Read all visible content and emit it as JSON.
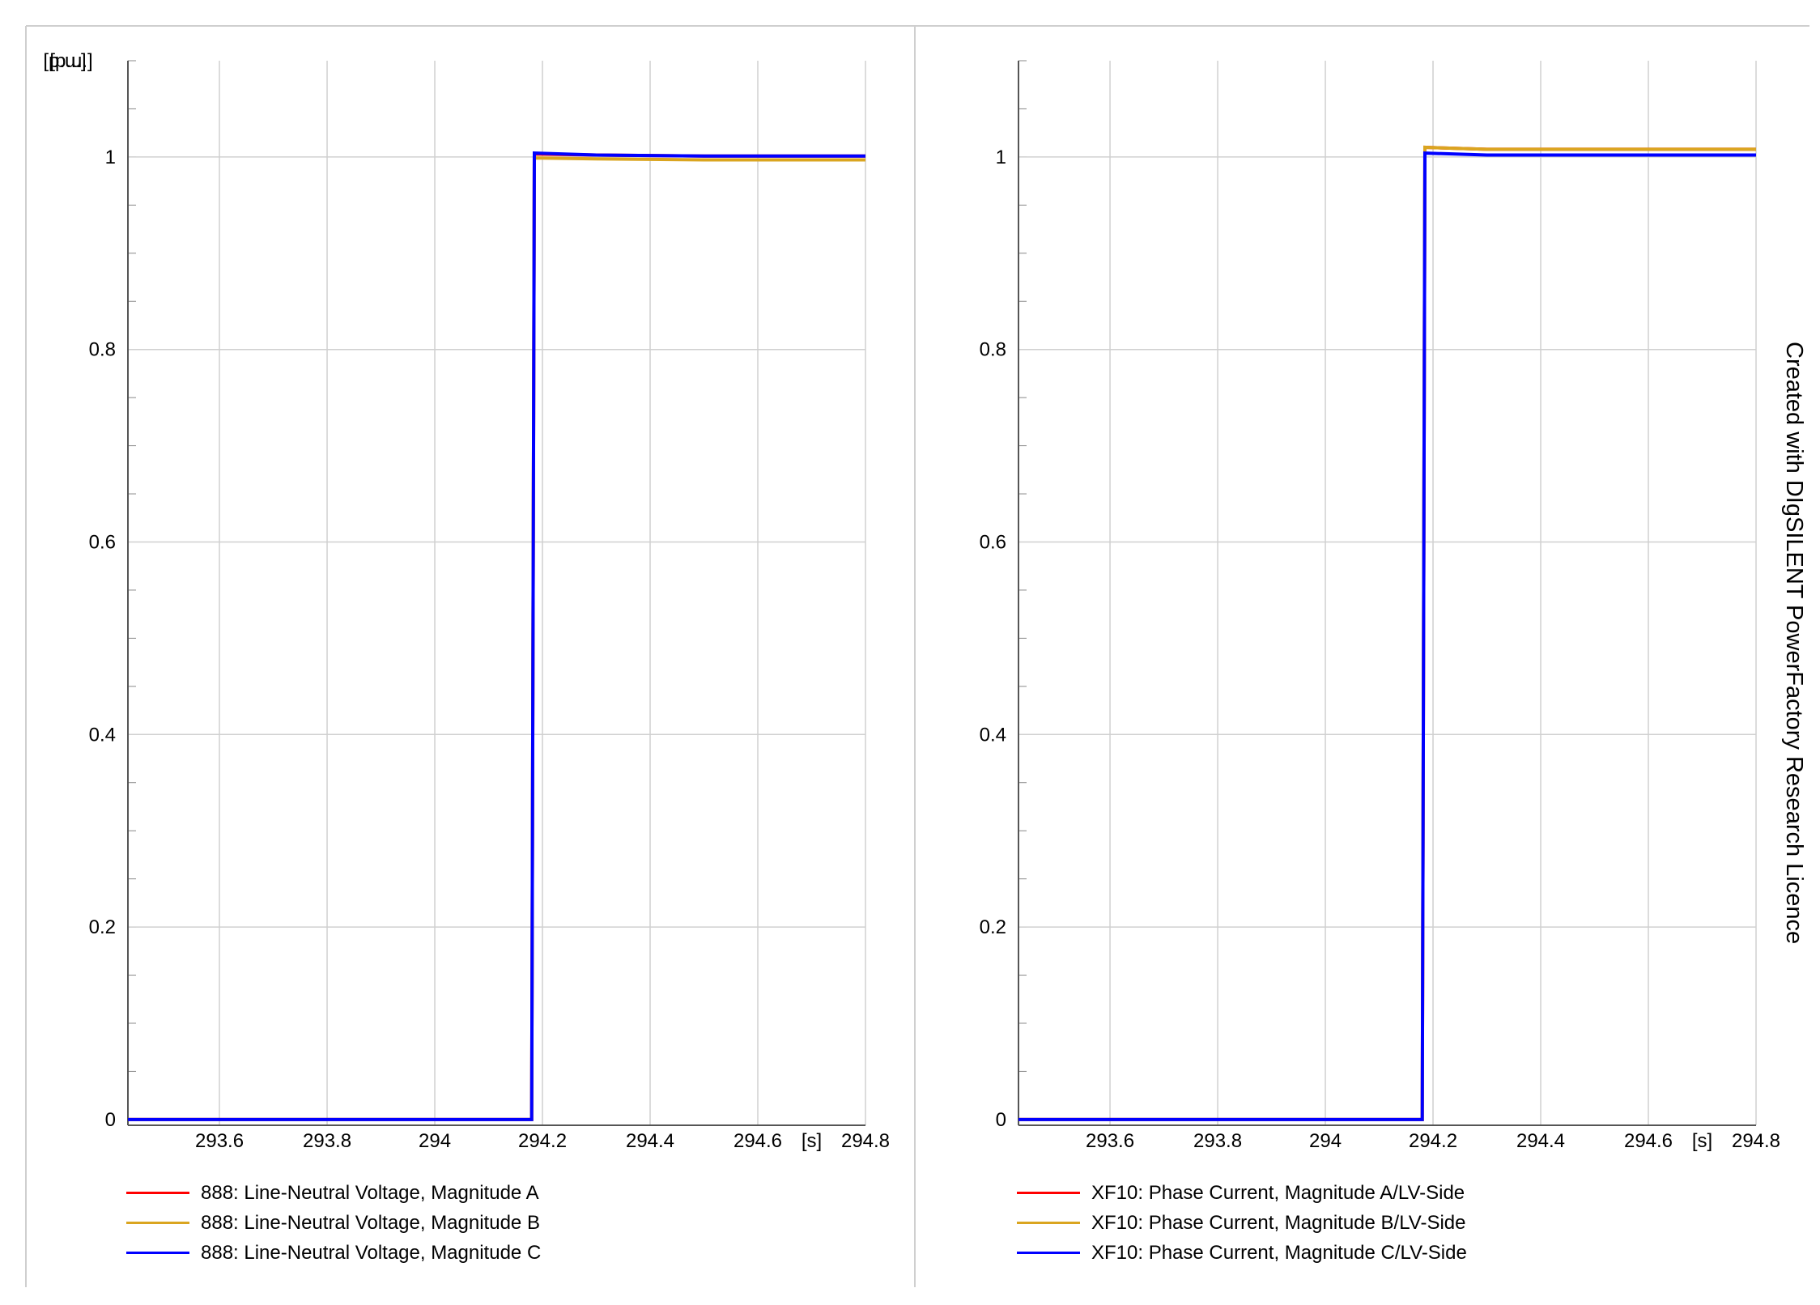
{
  "chart_data": [
    {
      "type": "line",
      "ylabel_unit": "[p.u.]",
      "xlabel_unit": "[s]",
      "xlim": [
        293.43,
        294.8
      ],
      "ylim": [
        -0.006,
        1.1
      ],
      "x_ticks": [
        "293.6",
        "293.8",
        "294",
        "294.2",
        "294.4",
        "294.6",
        "294.8"
      ],
      "y_ticks": [
        "0",
        "0.2",
        "0.4",
        "0.6",
        "0.8",
        "1"
      ],
      "grid": true,
      "legend_position": "bottom-left",
      "series": [
        {
          "name": "888: Line-Neutral Voltage, Magnitude A",
          "color": "#ff0000",
          "x": [
            293.43,
            294.18,
            294.185,
            294.3,
            294.5,
            294.8
          ],
          "y": [
            0,
            0,
            1.003,
            1.002,
            1.001,
            1.001
          ]
        },
        {
          "name": "888: Line-Neutral Voltage, Magnitude B",
          "color": "#daa520",
          "x": [
            293.43,
            294.18,
            294.185,
            294.3,
            294.5,
            294.8
          ],
          "y": [
            0,
            0,
            0.999,
            0.998,
            0.997,
            0.997
          ]
        },
        {
          "name": "888: Line-Neutral Voltage, Magnitude C",
          "color": "#0000ff",
          "x": [
            293.43,
            294.18,
            294.185,
            294.3,
            294.5,
            294.8
          ],
          "y": [
            0,
            0,
            1.004,
            1.002,
            1.001,
            1.001
          ]
        }
      ]
    },
    {
      "type": "line",
      "ylabel_unit": "[p.u.]",
      "xlabel_unit": "[s]",
      "xlim": [
        293.43,
        294.8
      ],
      "ylim": [
        -0.006,
        1.1
      ],
      "x_ticks": [
        "293.6",
        "293.8",
        "294",
        "294.2",
        "294.4",
        "294.6",
        "294.8"
      ],
      "y_ticks": [
        "0",
        "0.2",
        "0.4",
        "0.6",
        "0.8",
        "1"
      ],
      "grid": true,
      "legend_position": "bottom-left",
      "series": [
        {
          "name": "XF10: Phase Current, Magnitude A/LV-Side",
          "color": "#ff0000",
          "x": [
            293.43,
            294.18,
            294.185,
            294.3,
            294.5,
            294.8
          ],
          "y": [
            0,
            0,
            1.01,
            1.008,
            1.008,
            1.008
          ]
        },
        {
          "name": "XF10: Phase Current, Magnitude B/LV-Side",
          "color": "#daa520",
          "x": [
            293.43,
            294.18,
            294.185,
            294.3,
            294.5,
            294.8
          ],
          "y": [
            0,
            0,
            1.01,
            1.008,
            1.008,
            1.008
          ]
        },
        {
          "name": "XF10: Phase Current, Magnitude C/LV-Side",
          "color": "#0000ff",
          "x": [
            293.43,
            294.18,
            294.185,
            294.3,
            294.5,
            294.8
          ],
          "y": [
            0,
            0,
            1.004,
            1.002,
            1.002,
            1.002
          ]
        }
      ]
    }
  ],
  "watermark": "Created with DIgSILENT PowerFactory Research Licence"
}
